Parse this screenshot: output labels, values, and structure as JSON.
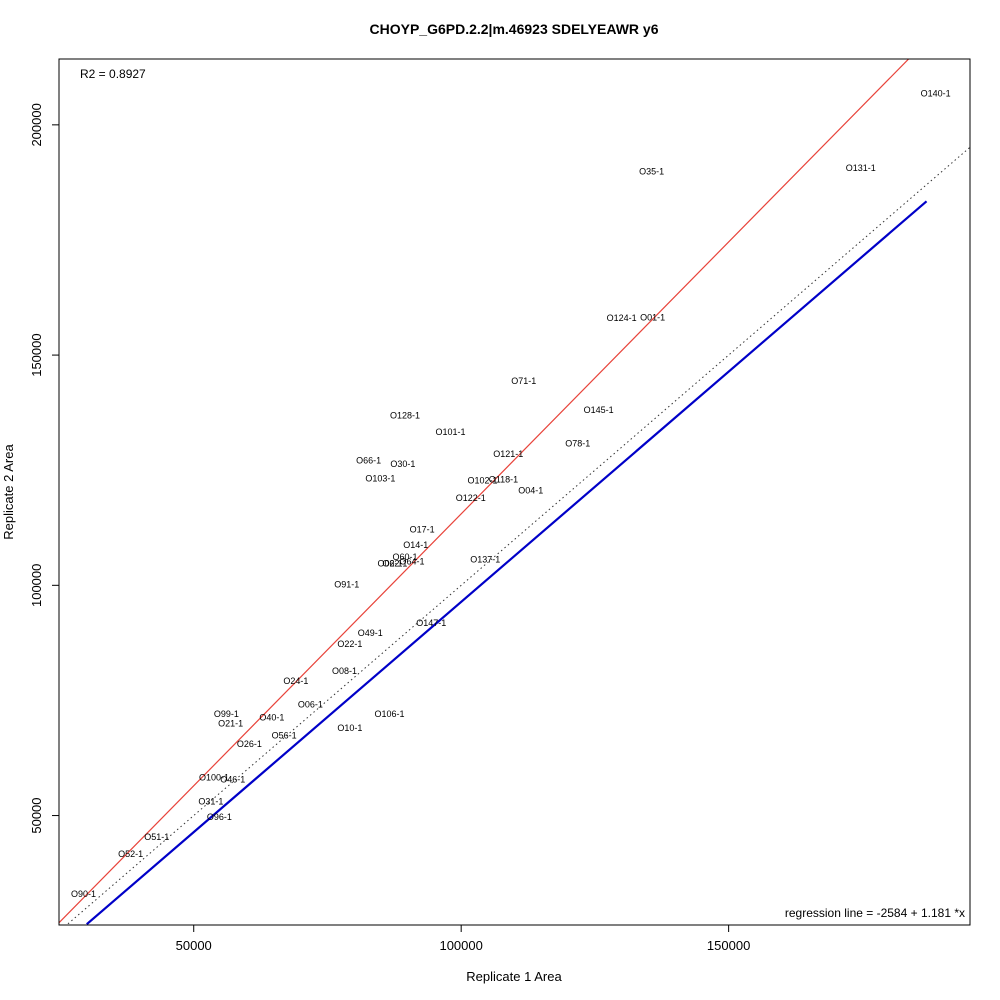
{
  "chart_data": {
    "type": "scatter",
    "title": "CHOYP_G6PD.2.2|m.46923 SDELYEAWR y6",
    "xlabel": "Replicate 1 Area",
    "ylabel": "Replicate 2 Area",
    "xlim": [
      24813,
      195124
    ],
    "ylim": [
      26231,
      214300
    ],
    "x_ticks": [
      50000,
      100000,
      150000
    ],
    "x_tick_labels": [
      "50000",
      "100000",
      "150000"
    ],
    "y_ticks": [
      50000,
      100000,
      150000,
      200000
    ],
    "y_tick_labels": [
      "50000",
      "100000",
      "150000",
      "200000"
    ],
    "r2_text": "R2 = 0.8927",
    "regression_text": "regression line = -2584 + 1.181 *x",
    "lines": {
      "identity_color": "#333333",
      "red_color": "#e8433a",
      "blue_color": "#0000c8",
      "blue_x_range": [
        30000,
        187000
      ],
      "red": {
        "intercept": -2584,
        "slope": 1.181
      },
      "blue": {
        "intercept": -3600,
        "slope": 1.0
      }
    },
    "points": [
      {
        "label": "O140-1",
        "x": 188700,
        "y": 206800
      },
      {
        "label": "O131-1",
        "x": 174700,
        "y": 190600
      },
      {
        "label": "O35-1",
        "x": 135600,
        "y": 189900
      },
      {
        "label": "O124-1",
        "x": 130000,
        "y": 158000
      },
      {
        "label": "O01-1",
        "x": 135800,
        "y": 158200
      },
      {
        "label": "O71-1",
        "x": 111700,
        "y": 144400
      },
      {
        "label": "O145-1",
        "x": 125700,
        "y": 138100
      },
      {
        "label": "O128-1",
        "x": 89500,
        "y": 136900
      },
      {
        "label": "O101-1",
        "x": 98000,
        "y": 133300
      },
      {
        "label": "O78-1",
        "x": 121800,
        "y": 130800
      },
      {
        "label": "O121-1",
        "x": 108800,
        "y": 128500
      },
      {
        "label": "O66-1",
        "x": 82700,
        "y": 127100
      },
      {
        "label": "O30-1",
        "x": 89100,
        "y": 126400
      },
      {
        "label": "O103-1",
        "x": 84900,
        "y": 123200
      },
      {
        "label": "O102-1",
        "x": 104000,
        "y": 122800
      },
      {
        "label": "O118-1",
        "x": 107900,
        "y": 123000
      },
      {
        "label": "O04-1",
        "x": 113000,
        "y": 120600
      },
      {
        "label": "O122-1",
        "x": 101800,
        "y": 119000
      },
      {
        "label": "O17-1",
        "x": 92700,
        "y": 112100
      },
      {
        "label": "O14-1",
        "x": 91500,
        "y": 108800
      },
      {
        "label": "O60-1",
        "x": 89500,
        "y": 106200
      },
      {
        "label": "O02-1",
        "x": 86700,
        "y": 104700
      },
      {
        "label": "O62-1",
        "x": 87600,
        "y": 104700
      },
      {
        "label": "O64-1",
        "x": 90800,
        "y": 105200
      },
      {
        "label": "O137-1",
        "x": 104500,
        "y": 105600
      },
      {
        "label": "O91-1",
        "x": 78600,
        "y": 100200
      },
      {
        "label": "O147-1",
        "x": 94400,
        "y": 91800
      },
      {
        "label": "O49-1",
        "x": 83000,
        "y": 89600
      },
      {
        "label": "O22-1",
        "x": 79200,
        "y": 87300
      },
      {
        "label": "O08-1",
        "x": 78200,
        "y": 81400
      },
      {
        "label": "O24-1",
        "x": 69100,
        "y": 79200
      },
      {
        "label": "O06-1",
        "x": 71800,
        "y": 74100
      },
      {
        "label": "O99-1",
        "x": 56100,
        "y": 72100
      },
      {
        "label": "O106-1",
        "x": 86600,
        "y": 72100
      },
      {
        "label": "O40-1",
        "x": 64600,
        "y": 71300
      },
      {
        "label": "O21-1",
        "x": 56900,
        "y": 70000
      },
      {
        "label": "O10-1",
        "x": 79200,
        "y": 69000
      },
      {
        "label": "O56-1",
        "x": 66900,
        "y": 67400
      },
      {
        "label": "O26-1",
        "x": 60400,
        "y": 65500
      },
      {
        "label": "O100-1",
        "x": 53800,
        "y": 58300
      },
      {
        "label": "O46-1",
        "x": 57300,
        "y": 57800
      },
      {
        "label": "O31-1",
        "x": 53200,
        "y": 53100
      },
      {
        "label": "O96-1",
        "x": 54800,
        "y": 49700
      },
      {
        "label": "O51-1",
        "x": 43100,
        "y": 45300
      },
      {
        "label": "O52-1",
        "x": 38200,
        "y": 41600
      },
      {
        "label": "O90-1",
        "x": 29400,
        "y": 33000
      }
    ]
  }
}
